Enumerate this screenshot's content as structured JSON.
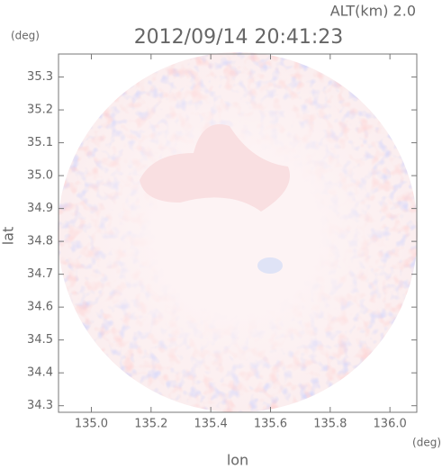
{
  "chart_data": {
    "type": "map",
    "title": "2012/09/14 20:41:23",
    "subtitle": "ALT(km) 2.0",
    "x_label": "lon",
    "y_label": "lat",
    "x_unit": "(deg)",
    "y_unit": "(deg)",
    "xlim": [
      134.89,
      136.09
    ],
    "ylim": [
      34.28,
      35.37
    ],
    "xticks": [
      {
        "value": 135,
        "label": "135.0"
      },
      135.2,
      135.4,
      135.6,
      135.8,
      {
        "value": 136,
        "label": "136.0"
      }
    ],
    "yticks": [
      35.3,
      35.2,
      35.1,
      {
        "value": 35,
        "label": "35.0"
      },
      34.9,
      34.8,
      34.7,
      34.6,
      34.5,
      34.4,
      34.3
    ]
  }
}
